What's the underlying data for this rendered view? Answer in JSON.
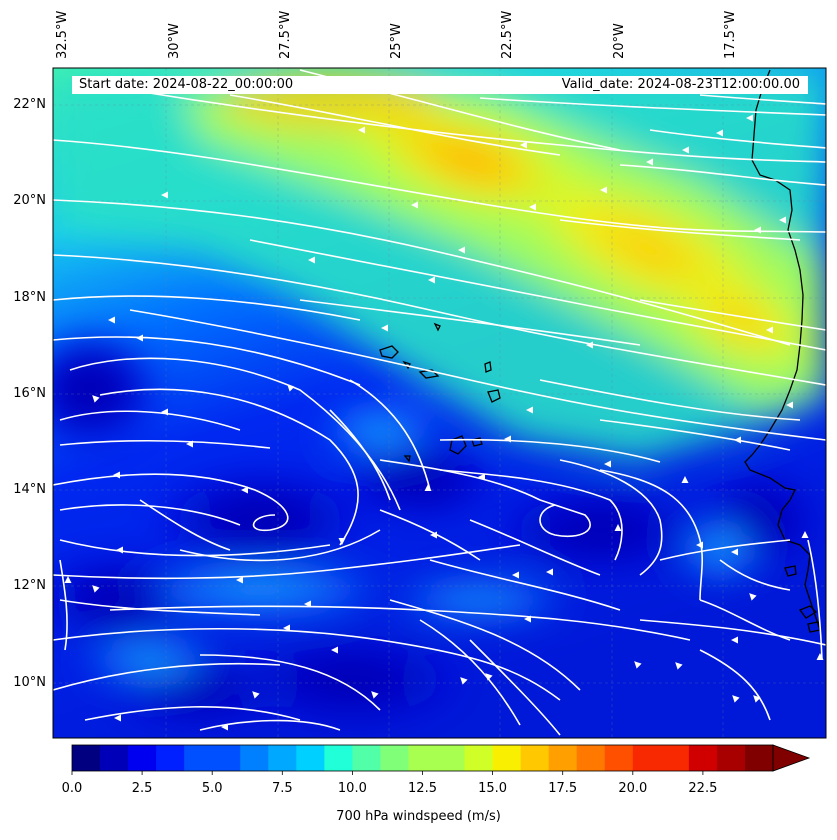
{
  "map": {
    "start_date_text": "Start date: 2024-08-22_00:00:00",
    "valid_date_text": "Valid_date: 2024-08-23T12:00:00.00",
    "lon_labels": [
      "32.5°W",
      "30°W",
      "27.5°W",
      "25°W",
      "22.5°W",
      "20°W",
      "17.5°W"
    ],
    "lat_labels": [
      "22°N",
      "20°N",
      "18°N",
      "16°N",
      "14°N",
      "12°N",
      "10°N"
    ],
    "extent": {
      "lon_min": -32.5,
      "lon_max": -15.8,
      "lat_min": 8.9,
      "lat_max": 22.8
    },
    "gridlines": "dashed",
    "field": "700 hPa windspeed",
    "colormap": "jet",
    "colors": {
      "streamline": "#ffffff",
      "coastline": "#000000"
    },
    "high_wind_band": {
      "orientation": "northwest-southeast",
      "max_speed_ms": 17
    },
    "circulations": [
      {
        "type": "cyclonic-vortex",
        "lon": -27.5,
        "lat": 13.3
      },
      {
        "type": "cyclonic-vortex",
        "lon": -22.2,
        "lat": 13.3
      }
    ]
  },
  "colorbar": {
    "ticks": [
      "0.0",
      "2.5",
      "5.0",
      "7.5",
      "10.0",
      "12.5",
      "15.0",
      "17.5",
      "20.0",
      "22.5"
    ],
    "tick_values": [
      0,
      2.5,
      5,
      7.5,
      10,
      12.5,
      15,
      17.5,
      20,
      22.5
    ],
    "range": [
      0,
      25
    ],
    "extend": "max",
    "label": "700 hPa windspeed (m/s)"
  }
}
